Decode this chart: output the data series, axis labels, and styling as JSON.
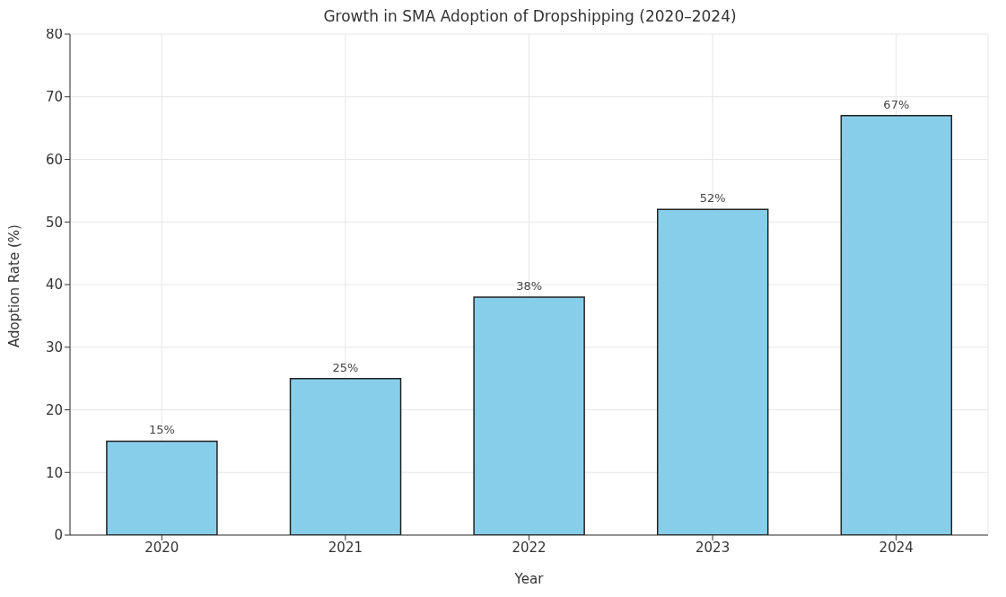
{
  "chart_data": {
    "type": "bar",
    "title": "Growth in SMA Adoption of Dropshipping (2020–2024)",
    "xlabel": "Year",
    "ylabel": "Adoption Rate (%)",
    "categories": [
      "2020",
      "2021",
      "2022",
      "2023",
      "2024"
    ],
    "values": [
      15,
      25,
      38,
      52,
      67
    ],
    "value_labels": [
      "15%",
      "25%",
      "38%",
      "52%",
      "67%"
    ],
    "color": "#87ceeb",
    "ylim": [
      0,
      80
    ],
    "yticks": [
      0,
      10,
      20,
      30,
      40,
      50,
      60,
      70,
      80
    ],
    "grid": true
  }
}
